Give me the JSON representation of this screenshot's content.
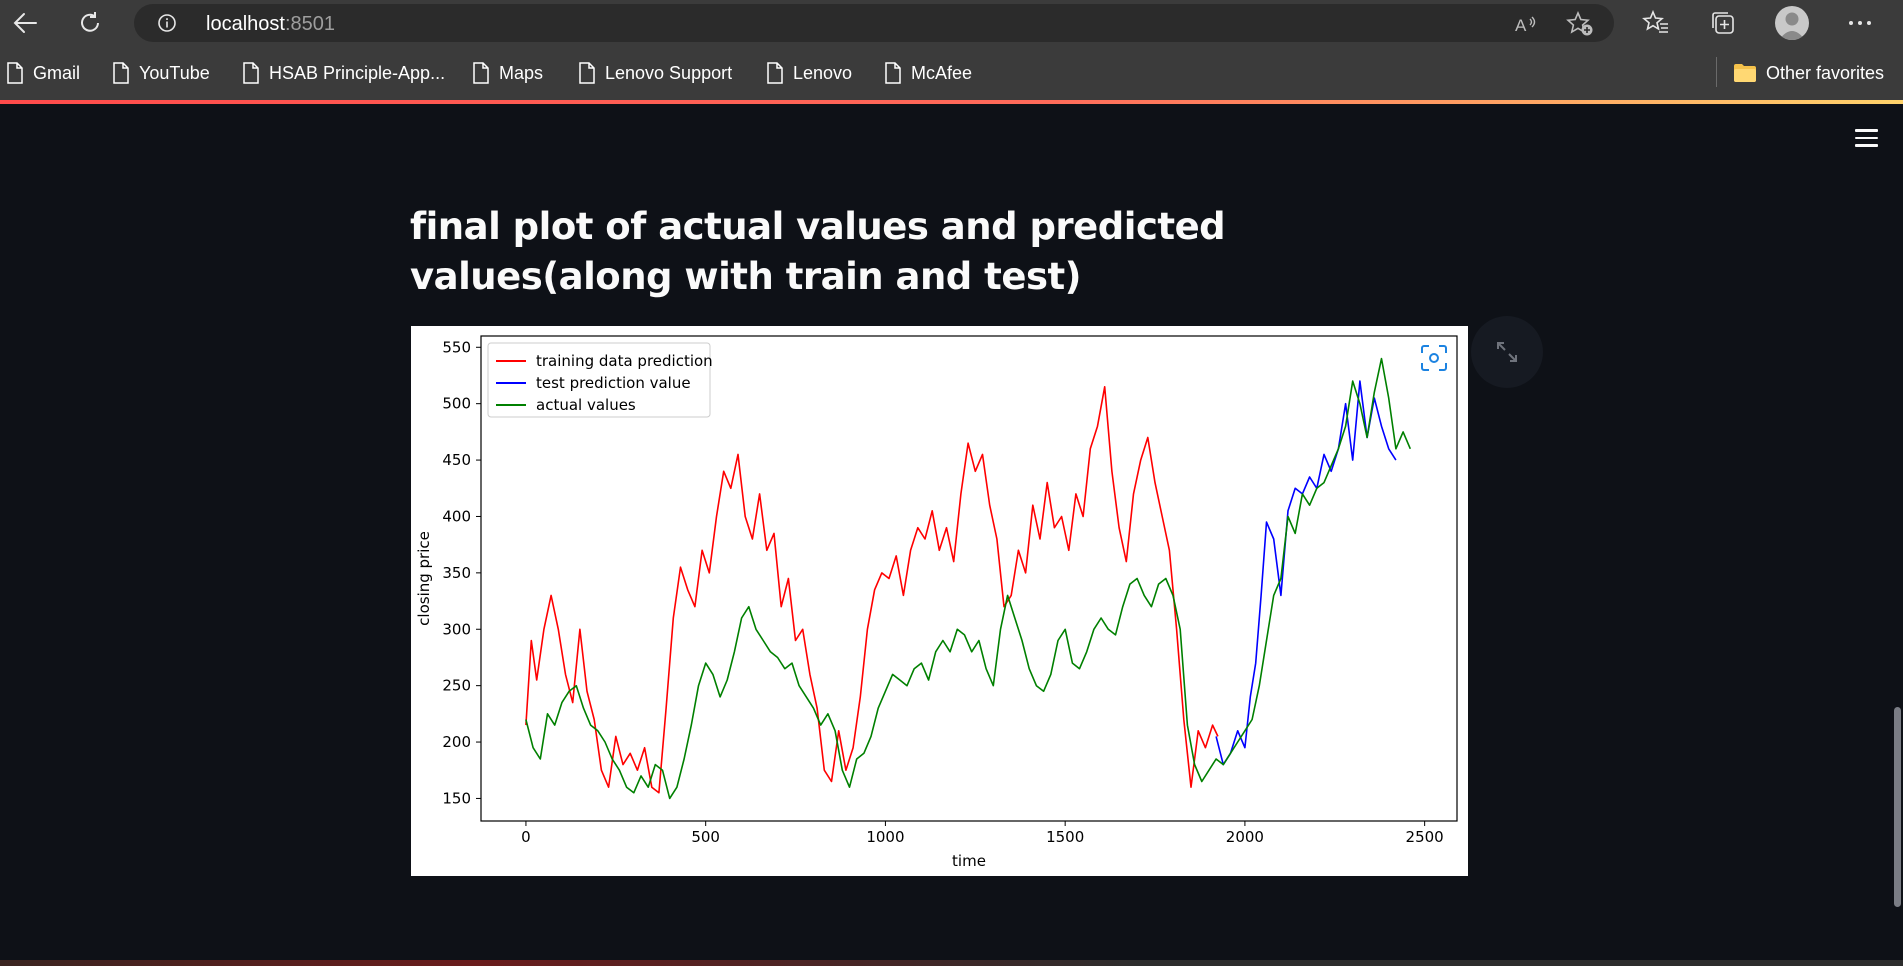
{
  "browser": {
    "url_host": "localhost",
    "url_port": ":8501",
    "bookmarks": [
      "Gmail",
      "YouTube",
      "HSAB Principle-App...",
      "Maps",
      "Lenovo Support",
      "Lenovo",
      "McAfee"
    ],
    "other_favorites": "Other favorites"
  },
  "page": {
    "title": "final plot of actual values and predicted values(along with train and test)"
  },
  "colors": {
    "train": "#ff0000",
    "test": "#0000ff",
    "actual": "#008000",
    "accent": "#ff4b4b",
    "background": "#0e1117"
  },
  "icons": [
    "back-arrow-icon",
    "refresh-icon",
    "info-icon",
    "read-aloud-icon",
    "add-favorite-icon",
    "favorites-icon",
    "collections-icon",
    "profile-icon",
    "more-icon",
    "page-icon",
    "folder-icon",
    "hamburger-icon",
    "expand-icon",
    "focus-icon"
  ],
  "chart_data": {
    "type": "line",
    "xlabel": "time",
    "ylabel": "closing price",
    "xlim": [
      -125,
      2590
    ],
    "ylim": [
      130,
      560
    ],
    "xticks": [
      0,
      500,
      1000,
      1500,
      2000,
      2500
    ],
    "yticks": [
      150,
      200,
      250,
      300,
      350,
      400,
      450,
      500,
      550
    ],
    "legend_position": "top-left",
    "series": [
      {
        "name": "training data prediction",
        "color": "#ff0000",
        "x": [
          0,
          15,
          30,
          50,
          70,
          90,
          110,
          130,
          150,
          170,
          190,
          210,
          230,
          250,
          270,
          290,
          310,
          330,
          350,
          370,
          390,
          410,
          430,
          450,
          470,
          490,
          510,
          530,
          550,
          570,
          590,
          610,
          630,
          650,
          670,
          690,
          710,
          730,
          750,
          770,
          790,
          810,
          830,
          850,
          870,
          890,
          910,
          930,
          950,
          970,
          990,
          1010,
          1030,
          1050,
          1070,
          1090,
          1110,
          1130,
          1150,
          1170,
          1190,
          1210,
          1230,
          1250,
          1270,
          1290,
          1310,
          1330,
          1350,
          1370,
          1390,
          1410,
          1430,
          1450,
          1470,
          1490,
          1510,
          1530,
          1550,
          1570,
          1590,
          1610,
          1630,
          1650,
          1670,
          1690,
          1710,
          1730,
          1750,
          1770,
          1790,
          1810,
          1830,
          1850,
          1870,
          1890,
          1910,
          1925
        ],
        "y": [
          215,
          290,
          255,
          300,
          330,
          300,
          260,
          235,
          300,
          245,
          220,
          175,
          160,
          205,
          180,
          190,
          175,
          195,
          160,
          155,
          230,
          310,
          355,
          335,
          320,
          370,
          350,
          400,
          440,
          425,
          455,
          400,
          380,
          420,
          370,
          385,
          320,
          345,
          290,
          300,
          260,
          230,
          175,
          165,
          210,
          175,
          195,
          240,
          300,
          335,
          350,
          345,
          365,
          330,
          370,
          390,
          380,
          405,
          370,
          390,
          360,
          420,
          465,
          440,
          455,
          410,
          380,
          320,
          330,
          370,
          350,
          410,
          380,
          430,
          390,
          400,
          370,
          420,
          400,
          460,
          480,
          515,
          440,
          390,
          360,
          420,
          450,
          470,
          430,
          400,
          370,
          300,
          220,
          160,
          210,
          195,
          215,
          205
        ]
      },
      {
        "name": "test prediction value",
        "color": "#0000ff",
        "x": [
          1920,
          1940,
          1960,
          1980,
          2000,
          2015,
          2030,
          2045,
          2060,
          2080,
          2100,
          2120,
          2140,
          2160,
          2180,
          2200,
          2220,
          2240,
          2260,
          2280,
          2300,
          2320,
          2340,
          2360,
          2380,
          2400,
          2420
        ],
        "y": [
          205,
          180,
          190,
          210,
          195,
          240,
          270,
          330,
          395,
          380,
          330,
          405,
          425,
          420,
          435,
          425,
          455,
          440,
          460,
          500,
          450,
          520,
          470,
          505,
          480,
          460,
          450
        ]
      },
      {
        "name": "actual values",
        "color": "#008000",
        "x": [
          0,
          20,
          40,
          60,
          80,
          100,
          120,
          140,
          160,
          180,
          200,
          220,
          240,
          260,
          280,
          300,
          320,
          340,
          360,
          380,
          400,
          420,
          440,
          460,
          480,
          500,
          520,
          540,
          560,
          580,
          600,
          620,
          640,
          660,
          680,
          700,
          720,
          740,
          760,
          780,
          800,
          820,
          840,
          860,
          880,
          900,
          920,
          940,
          960,
          980,
          1000,
          1020,
          1040,
          1060,
          1080,
          1100,
          1120,
          1140,
          1160,
          1180,
          1200,
          1220,
          1240,
          1260,
          1280,
          1300,
          1320,
          1340,
          1360,
          1380,
          1400,
          1420,
          1440,
          1460,
          1480,
          1500,
          1520,
          1540,
          1560,
          1580,
          1600,
          1620,
          1640,
          1660,
          1680,
          1700,
          1720,
          1740,
          1760,
          1780,
          1800,
          1820,
          1840,
          1860,
          1880,
          1900,
          1920,
          1940,
          1960,
          1980,
          2000,
          2020,
          2040,
          2060,
          2080,
          2100,
          2120,
          2140,
          2160,
          2180,
          2200,
          2220,
          2240,
          2260,
          2280,
          2300,
          2320,
          2340,
          2360,
          2380,
          2400,
          2420,
          2440,
          2460
        ],
        "y": [
          220,
          195,
          185,
          225,
          215,
          235,
          245,
          250,
          230,
          215,
          210,
          200,
          185,
          175,
          160,
          155,
          170,
          160,
          180,
          175,
          150,
          160,
          185,
          215,
          250,
          270,
          260,
          240,
          255,
          280,
          310,
          320,
          300,
          290,
          280,
          275,
          265,
          270,
          250,
          240,
          230,
          215,
          225,
          210,
          175,
          160,
          185,
          190,
          205,
          230,
          245,
          260,
          255,
          250,
          265,
          270,
          255,
          280,
          290,
          280,
          300,
          295,
          280,
          290,
          265,
          250,
          300,
          330,
          310,
          290,
          265,
          250,
          245,
          260,
          290,
          300,
          270,
          265,
          280,
          300,
          310,
          300,
          295,
          320,
          340,
          345,
          330,
          320,
          340,
          345,
          330,
          300,
          215,
          180,
          165,
          175,
          185,
          180,
          190,
          200,
          210,
          220,
          250,
          290,
          330,
          345,
          400,
          385,
          420,
          410,
          425,
          430,
          445,
          460,
          480,
          520,
          500,
          470,
          510,
          540,
          505,
          460,
          475,
          460
        ]
      }
    ]
  }
}
